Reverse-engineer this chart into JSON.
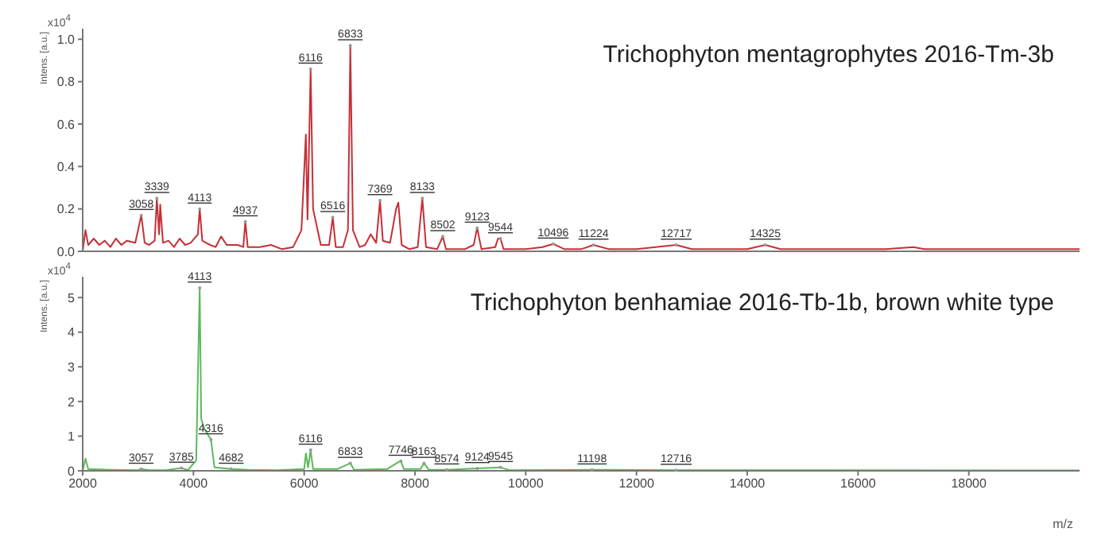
{
  "chart_data": [
    {
      "type": "line",
      "title": "Trichophyton mentagrophytes 2016-Tm-3b",
      "ylabel": "Intens. [a.u.]",
      "xlim": [
        2000,
        20000
      ],
      "xticks": [
        2000,
        4000,
        6000,
        8000,
        10000,
        12000,
        14000,
        16000,
        18000
      ],
      "ylim": [
        0,
        1.05
      ],
      "yticks": [
        {
          "value": 0,
          "label": "0.0"
        },
        {
          "value": 0.2,
          "label": "0.2"
        },
        {
          "value": 0.4,
          "label": "0.4"
        },
        {
          "value": 0.6,
          "label": "0.6"
        },
        {
          "value": 0.8,
          "label": "0.8"
        },
        {
          "value": 1,
          "label": "1.0"
        }
      ],
      "tick_labels": "y",
      "marker": "none",
      "series": [
        {
          "color": "#c62f36",
          "x": [
            2000,
            2050,
            2100,
            2200,
            2300,
            2400,
            2500,
            2600,
            2700,
            2800,
            2950,
            3000,
            3058,
            3120,
            3200,
            3300,
            3339,
            3380,
            3400,
            3450,
            3550,
            3650,
            3750,
            3850,
            3950,
            4080,
            4113,
            4160,
            4300,
            4400,
            4500,
            4600,
            4800,
            4900,
            4937,
            4980,
            5200,
            5400,
            5600,
            5800,
            5950,
            6030,
            6060,
            6116,
            6160,
            6300,
            6450,
            6516,
            6570,
            6700,
            6790,
            6833,
            6880,
            7000,
            7100,
            7200,
            7300,
            7369,
            7420,
            7550,
            7660,
            7700,
            7760,
            7900,
            8050,
            8133,
            8200,
            8400,
            8502,
            8560,
            8900,
            9060,
            9123,
            9200,
            9450,
            9500,
            9544,
            9600,
            10000,
            10300,
            10496,
            10700,
            11000,
            11224,
            11500,
            12000,
            12717,
            13000,
            14000,
            14325,
            14600,
            16500,
            17000,
            17200,
            20000
          ],
          "values": [
            0,
            0.1,
            0.03,
            0.06,
            0.03,
            0.05,
            0.02,
            0.06,
            0.03,
            0.05,
            0.04,
            0.1,
            0.17,
            0.04,
            0.03,
            0.05,
            0.25,
            0.08,
            0.22,
            0.04,
            0.05,
            0.02,
            0.06,
            0.03,
            0.04,
            0.08,
            0.2,
            0.05,
            0.03,
            0.02,
            0.07,
            0.03,
            0.03,
            0.02,
            0.14,
            0.02,
            0.02,
            0.03,
            0.01,
            0.02,
            0.1,
            0.55,
            0.15,
            0.86,
            0.2,
            0.03,
            0.03,
            0.16,
            0.02,
            0.02,
            0.1,
            0.97,
            0.1,
            0.02,
            0.03,
            0.08,
            0.04,
            0.24,
            0.05,
            0.04,
            0.2,
            0.23,
            0.03,
            0.01,
            0.02,
            0.25,
            0.02,
            0.01,
            0.07,
            0.01,
            0.01,
            0.03,
            0.11,
            0.01,
            0.02,
            0.06,
            0.06,
            0.01,
            0.01,
            0.02,
            0.035,
            0.01,
            0.01,
            0.03,
            0.01,
            0.01,
            0.03,
            0.01,
            0.01,
            0.03,
            0.01,
            0.01,
            0.02,
            0.01,
            0.01
          ]
        }
      ],
      "annotations": [
        "x10$^{4}$",
        {
          "text": "3058",
          "x": 3058,
          "y": 0.17
        },
        {
          "text": "3339",
          "x": 3339,
          "y": 0.25
        },
        {
          "text": "4113",
          "x": 4113,
          "y": 0.2
        },
        {
          "text": "4937",
          "x": 4937,
          "y": 0.14
        },
        {
          "text": "6116",
          "x": 6116,
          "y": 0.86
        },
        {
          "text": "6516",
          "x": 6516,
          "y": 0.16
        },
        {
          "text": "6833",
          "x": 6833,
          "y": 0.97
        },
        {
          "text": "7369",
          "x": 7369,
          "y": 0.24
        },
        {
          "text": "8133",
          "x": 8133,
          "y": 0.25
        },
        {
          "text": "8502",
          "x": 8502,
          "y": 0.07
        },
        {
          "text": "9123",
          "x": 9123,
          "y": 0.11
        },
        {
          "text": "9544",
          "x": 9544,
          "y": 0.06
        },
        {
          "text": "10496",
          "x": 10496,
          "y": 0.035
        },
        {
          "text": "11224",
          "x": 11224,
          "y": 0.03
        },
        {
          "text": "12717",
          "x": 12717,
          "y": 0.03
        },
        {
          "text": "14325",
          "x": 14325,
          "y": 0.03
        }
      ]
    },
    {
      "type": "line",
      "title": "Trichophyton benhamiae 2016-Tb-1b, brown white type",
      "xlabel": "m/z",
      "ylabel": "Intens. [a.u.]",
      "xlim": [
        2000,
        20000
      ],
      "xticks": [
        2000,
        4000,
        6000,
        8000,
        10000,
        12000,
        14000,
        16000,
        18000
      ],
      "ylim": [
        0,
        5.6
      ],
      "yticks": [
        0,
        1,
        2,
        3,
        4,
        5
      ],
      "marker": "none",
      "series": [
        {
          "color": "#5cb85c",
          "x": [
            2000,
            2050,
            2100,
            2500,
            3000,
            3057,
            3200,
            3500,
            3785,
            3900,
            4050,
            4090,
            4113,
            4140,
            4200,
            4316,
            4380,
            4682,
            5000,
            5500,
            6000,
            6030,
            6070,
            6116,
            6160,
            6600,
            6833,
            6900,
            7500,
            7600,
            7700,
            7746,
            7800,
            8100,
            8163,
            8250,
            8574,
            9124,
            9545,
            9700,
            11198,
            12716,
            20000
          ],
          "values": [
            0,
            0.35,
            0.05,
            0.03,
            0.02,
            0.05,
            0.02,
            0.02,
            0.08,
            0.02,
            0.3,
            3.5,
            5.28,
            1.5,
            1.2,
            0.9,
            0.1,
            0.05,
            0.03,
            0.02,
            0.05,
            0.5,
            0.1,
            0.6,
            0.05,
            0.05,
            0.22,
            0.03,
            0.05,
            0.15,
            0.25,
            0.28,
            0.05,
            0.05,
            0.22,
            0.03,
            0.03,
            0.07,
            0.1,
            0.02,
            0.03,
            0.02,
            0.01
          ]
        }
      ],
      "annotations": [
        "x10$^{4}$",
        {
          "text": "4113",
          "x": 4113,
          "y": 5.28
        },
        {
          "text": "3057",
          "x": 3057,
          "y": 0.05
        },
        {
          "text": "3785",
          "x": 3785,
          "y": 0.08
        },
        {
          "text": "4316",
          "x": 4316,
          "y": 0.9
        },
        {
          "text": "4682",
          "x": 4682,
          "y": 0.05
        },
        {
          "text": "6116",
          "x": 6116,
          "y": 0.6
        },
        {
          "text": "6833",
          "x": 6833,
          "y": 0.22
        },
        {
          "text": "7746",
          "x": 7746,
          "y": 0.28
        },
        {
          "text": "8163",
          "x": 8163,
          "y": 0.22
        },
        {
          "text": "8574",
          "x": 8574,
          "y": 0.03
        },
        {
          "text": "9124",
          "x": 9124,
          "y": 0.07
        },
        {
          "text": "9545",
          "x": 9545,
          "y": 0.1
        },
        {
          "text": "11198",
          "x": 11198,
          "y": 0.03
        },
        {
          "text": "12716",
          "x": 12716,
          "y": 0.02
        }
      ]
    }
  ]
}
